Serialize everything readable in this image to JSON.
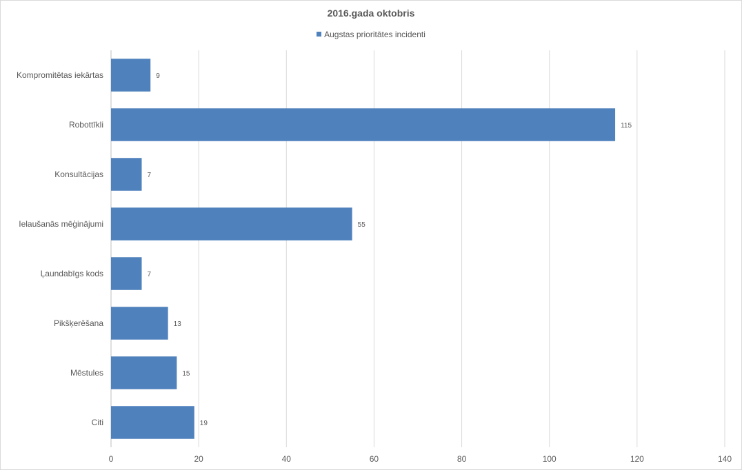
{
  "chart_data": {
    "type": "bar",
    "orientation": "horizontal",
    "title": "2016.gada oktobris",
    "categories": [
      "Kompromitētas iekārtas",
      "Robottīkli",
      "Konsultācijas",
      "Ielaušanās mēģinājumi",
      "Ļaundabīgs kods",
      "Pikšķerēšana",
      "Mēstules",
      "Citi"
    ],
    "series": [
      {
        "name": "Augstas prioritātes incidenti",
        "values": [
          9,
          115,
          7,
          55,
          7,
          13,
          15,
          19
        ],
        "color": "#4f81bd"
      }
    ],
    "xlabel": "",
    "ylabel": "",
    "xlim": [
      0,
      140
    ],
    "x_ticks": [
      "0",
      "20",
      "40",
      "60",
      "80",
      "100",
      "120",
      "140"
    ],
    "grid": true,
    "legend_position": "top",
    "data_labels": [
      "9",
      "115",
      "7",
      "55",
      "7",
      "13",
      "15",
      "19"
    ]
  }
}
